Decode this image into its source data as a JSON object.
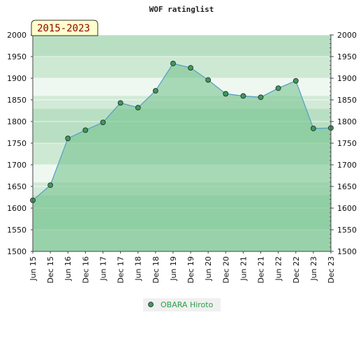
{
  "chart_data": {
    "type": "line",
    "title": "WOF ratinglist",
    "period_label": "2015-2023",
    "xlabel": "",
    "ylabel": "",
    "ylim": [
      1500,
      2000
    ],
    "yticks": [
      1500,
      1550,
      1600,
      1650,
      1700,
      1750,
      1800,
      1850,
      1900,
      1950,
      2000
    ],
    "categories": [
      "Jun 15",
      "Dec 15",
      "Jun 16",
      "Dec 16",
      "Jun 17",
      "Dec 17",
      "Jun 18",
      "Dec 18",
      "Jun 19",
      "Dec 19",
      "Jun 20",
      "Dec 20",
      "Jun 21",
      "Dec 21",
      "Jun 22",
      "Dec 22",
      "Jun 23",
      "Dec 23"
    ],
    "series": [
      {
        "name": "OBARA Hiroto",
        "values": [
          1618,
          1653,
          1761,
          1780,
          1798,
          1843,
          1832,
          1871,
          1934,
          1924,
          1896,
          1864,
          1859,
          1856,
          1877,
          1894,
          1784,
          1785
        ]
      }
    ],
    "grid": true,
    "legend": "bottom-center",
    "colors": {
      "line": "#5aa0c8",
      "marker": "#3c9a5a",
      "fill": "#6fbf88",
      "band_dark": "#b9dfc3",
      "band_light": "#eef8f0",
      "badge_bg": "#ffffcc"
    }
  }
}
